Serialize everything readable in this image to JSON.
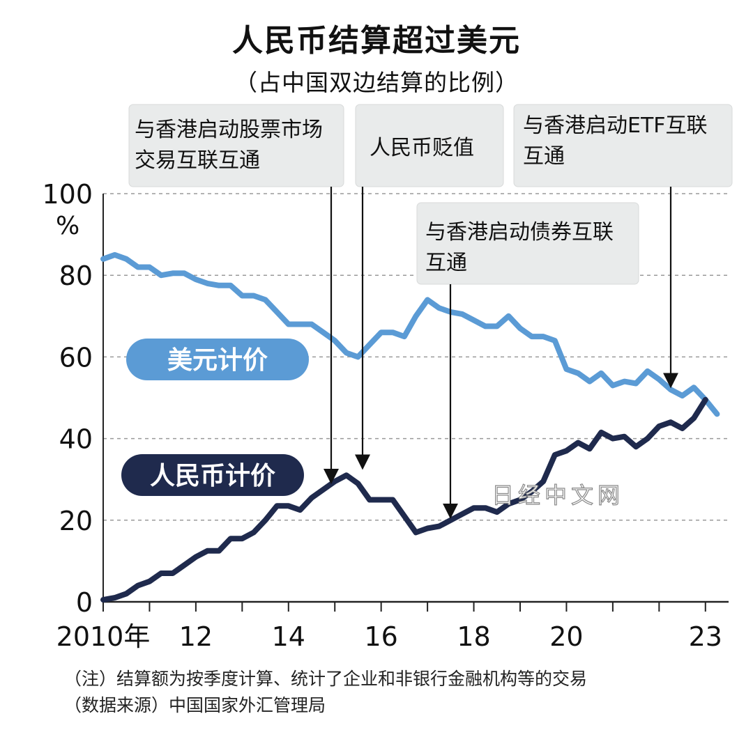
{
  "header": {
    "title": "人民币结算超过美元",
    "subtitle": "（占中国双边结算的比例）"
  },
  "notes": {
    "note1": "（注）结算额为按季度计算、统计了企业和非银行金融机构等的交易",
    "note2": "（数据来源）中国国家外汇管理局"
  },
  "watermark": "日经中文网",
  "chart_data": {
    "type": "line",
    "y_unit": "%",
    "ylim": [
      0,
      100
    ],
    "y_ticks": [
      "0",
      "20",
      "40",
      "60",
      "80",
      "100"
    ],
    "xlim": [
      2010,
      2023.5
    ],
    "x_ticks": [
      {
        "value": 2010,
        "label": "2010年"
      },
      {
        "value": 2012,
        "label": "12"
      },
      {
        "value": 2014,
        "label": "14"
      },
      {
        "value": 2016,
        "label": "16"
      },
      {
        "value": 2018,
        "label": "18"
      },
      {
        "value": 2020,
        "label": "20"
      },
      {
        "value": 2023,
        "label": "23"
      }
    ],
    "grid": "horizontal-dashed",
    "series": [
      {
        "name": "美元计价",
        "color": "#5b9bd5",
        "label_style": "pill",
        "points": [
          [
            2010.0,
            84
          ],
          [
            2010.25,
            85
          ],
          [
            2010.5,
            84
          ],
          [
            2010.75,
            82
          ],
          [
            2011.0,
            82
          ],
          [
            2011.25,
            80
          ],
          [
            2011.5,
            80.5
          ],
          [
            2011.75,
            80.5
          ],
          [
            2012.0,
            79
          ],
          [
            2012.25,
            78
          ],
          [
            2012.5,
            77.5
          ],
          [
            2012.75,
            77.5
          ],
          [
            2013.0,
            75
          ],
          [
            2013.25,
            75
          ],
          [
            2013.5,
            74
          ],
          [
            2013.75,
            71
          ],
          [
            2014.0,
            68
          ],
          [
            2014.25,
            68
          ],
          [
            2014.5,
            68
          ],
          [
            2014.75,
            66
          ],
          [
            2015.0,
            64
          ],
          [
            2015.25,
            61
          ],
          [
            2015.5,
            60
          ],
          [
            2015.75,
            63
          ],
          [
            2016.0,
            66
          ],
          [
            2016.25,
            66
          ],
          [
            2016.5,
            65
          ],
          [
            2016.75,
            70
          ],
          [
            2017.0,
            74
          ],
          [
            2017.25,
            72
          ],
          [
            2017.5,
            71
          ],
          [
            2017.75,
            70.5
          ],
          [
            2018.0,
            69
          ],
          [
            2018.25,
            67.5
          ],
          [
            2018.5,
            67.5
          ],
          [
            2018.75,
            70
          ],
          [
            2019.0,
            67
          ],
          [
            2019.25,
            65
          ],
          [
            2019.5,
            65
          ],
          [
            2019.75,
            64
          ],
          [
            2020.0,
            57
          ],
          [
            2020.25,
            56
          ],
          [
            2020.5,
            54
          ],
          [
            2020.75,
            56
          ],
          [
            2021.0,
            53
          ],
          [
            2021.25,
            54
          ],
          [
            2021.5,
            53.5
          ],
          [
            2021.75,
            56.5
          ],
          [
            2022.0,
            54.5
          ],
          [
            2022.25,
            52
          ],
          [
            2022.5,
            50.5
          ],
          [
            2022.75,
            52.5
          ],
          [
            2023.0,
            49.5
          ],
          [
            2023.25,
            46
          ]
        ]
      },
      {
        "name": "人民币计价",
        "color": "#1f2a4d",
        "label_style": "pill",
        "points": [
          [
            2010.0,
            0.5
          ],
          [
            2010.25,
            1
          ],
          [
            2010.5,
            2
          ],
          [
            2010.75,
            4
          ],
          [
            2011.0,
            5
          ],
          [
            2011.25,
            7
          ],
          [
            2011.5,
            7
          ],
          [
            2011.75,
            9
          ],
          [
            2012.0,
            11
          ],
          [
            2012.25,
            12.5
          ],
          [
            2012.5,
            12.5
          ],
          [
            2012.75,
            15.5
          ],
          [
            2013.0,
            15.5
          ],
          [
            2013.25,
            17
          ],
          [
            2013.5,
            20
          ],
          [
            2013.75,
            23.5
          ],
          [
            2014.0,
            23.5
          ],
          [
            2014.25,
            22.5
          ],
          [
            2014.5,
            25.5
          ],
          [
            2014.75,
            27.5
          ],
          [
            2015.0,
            29.5
          ],
          [
            2015.25,
            31
          ],
          [
            2015.5,
            29
          ],
          [
            2015.75,
            25
          ],
          [
            2016.0,
            25
          ],
          [
            2016.25,
            25
          ],
          [
            2016.5,
            21
          ],
          [
            2016.75,
            17
          ],
          [
            2017.0,
            18
          ],
          [
            2017.25,
            18.5
          ],
          [
            2017.5,
            20
          ],
          [
            2017.75,
            21.5
          ],
          [
            2018.0,
            23
          ],
          [
            2018.25,
            23
          ],
          [
            2018.5,
            22
          ],
          [
            2018.75,
            24
          ],
          [
            2019.0,
            25
          ],
          [
            2019.25,
            27
          ],
          [
            2019.5,
            29.5
          ],
          [
            2019.75,
            36
          ],
          [
            2020.0,
            37
          ],
          [
            2020.25,
            39
          ],
          [
            2020.5,
            37.5
          ],
          [
            2020.75,
            41.5
          ],
          [
            2021.0,
            40
          ],
          [
            2021.25,
            40.5
          ],
          [
            2021.5,
            38
          ],
          [
            2021.75,
            40
          ],
          [
            2022.0,
            43
          ],
          [
            2022.25,
            44
          ],
          [
            2022.5,
            42.5
          ],
          [
            2022.75,
            45
          ],
          [
            2023.0,
            49.5
          ]
        ]
      }
    ],
    "annotations": [
      {
        "lines": [
          "与香港启动股票市场",
          "交易互联互通"
        ],
        "x": 2014.75,
        "y": 27.5
      },
      {
        "lines": [
          "人民币贬值"
        ],
        "x": 2015.25,
        "y": 31
      },
      {
        "lines": [
          "与香港启动债券互联",
          "互通"
        ],
        "x": 2017.25,
        "y": 19
      },
      {
        "lines": [
          "与香港启动ETF互联",
          "互通"
        ],
        "x": 2022.5,
        "y": 51
      }
    ]
  }
}
